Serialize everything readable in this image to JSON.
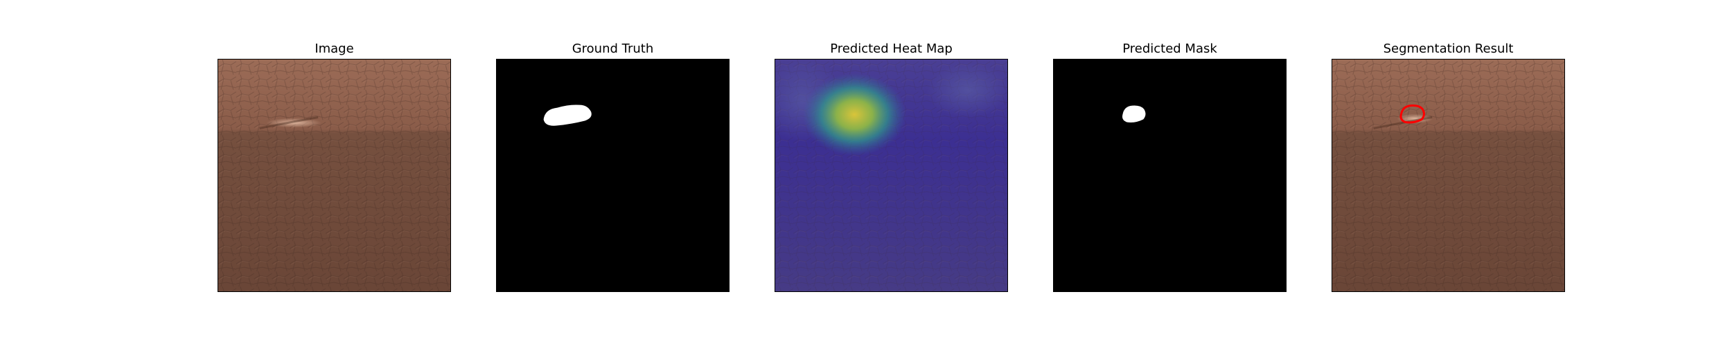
{
  "figure": {
    "panels": [
      {
        "title": "Image"
      },
      {
        "title": "Ground Truth"
      },
      {
        "title": "Predicted Heat Map"
      },
      {
        "title": "Predicted Mask"
      },
      {
        "title": "Segmentation Result"
      }
    ]
  },
  "colors": {
    "leather_top": "#9a6a55",
    "leather_bottom": "#6b4738",
    "mask_background": "#000000",
    "mask_foreground": "#ffffff",
    "heatmap_low": "#3b2f8a",
    "heatmap_high": "#d8c23a",
    "contour": "#ff0000"
  }
}
